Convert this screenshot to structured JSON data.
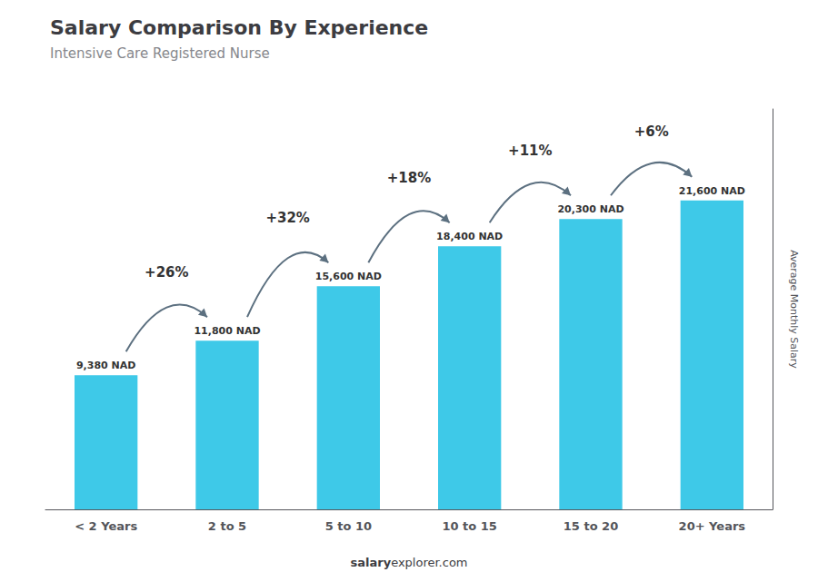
{
  "chart_data": {
    "type": "bar",
    "title": "Salary Comparison By Experience",
    "subtitle": "Intensive Care Registered Nurse",
    "categories": [
      "< 2 Years",
      "2 to 5",
      "5 to 10",
      "10 to 15",
      "15 to 20",
      "20+ Years"
    ],
    "values": [
      9380,
      11800,
      15600,
      18400,
      20300,
      21600
    ],
    "value_labels": [
      "9,380 NAD",
      "11,800 NAD",
      "15,600 NAD",
      "18,400 NAD",
      "20,300 NAD",
      "21,600 NAD"
    ],
    "data_labels": true,
    "color": "#3EC9E8",
    "ylabel": "Average Monthly Salary",
    "ylim": [
      0,
      28000
    ],
    "annotations": [
      "+26%",
      "+32%",
      "+18%",
      "+11%",
      "+6%"
    ],
    "footer": [
      "salary",
      "explorer.com"
    ],
    "grid": false,
    "tick_labels": "x"
  }
}
